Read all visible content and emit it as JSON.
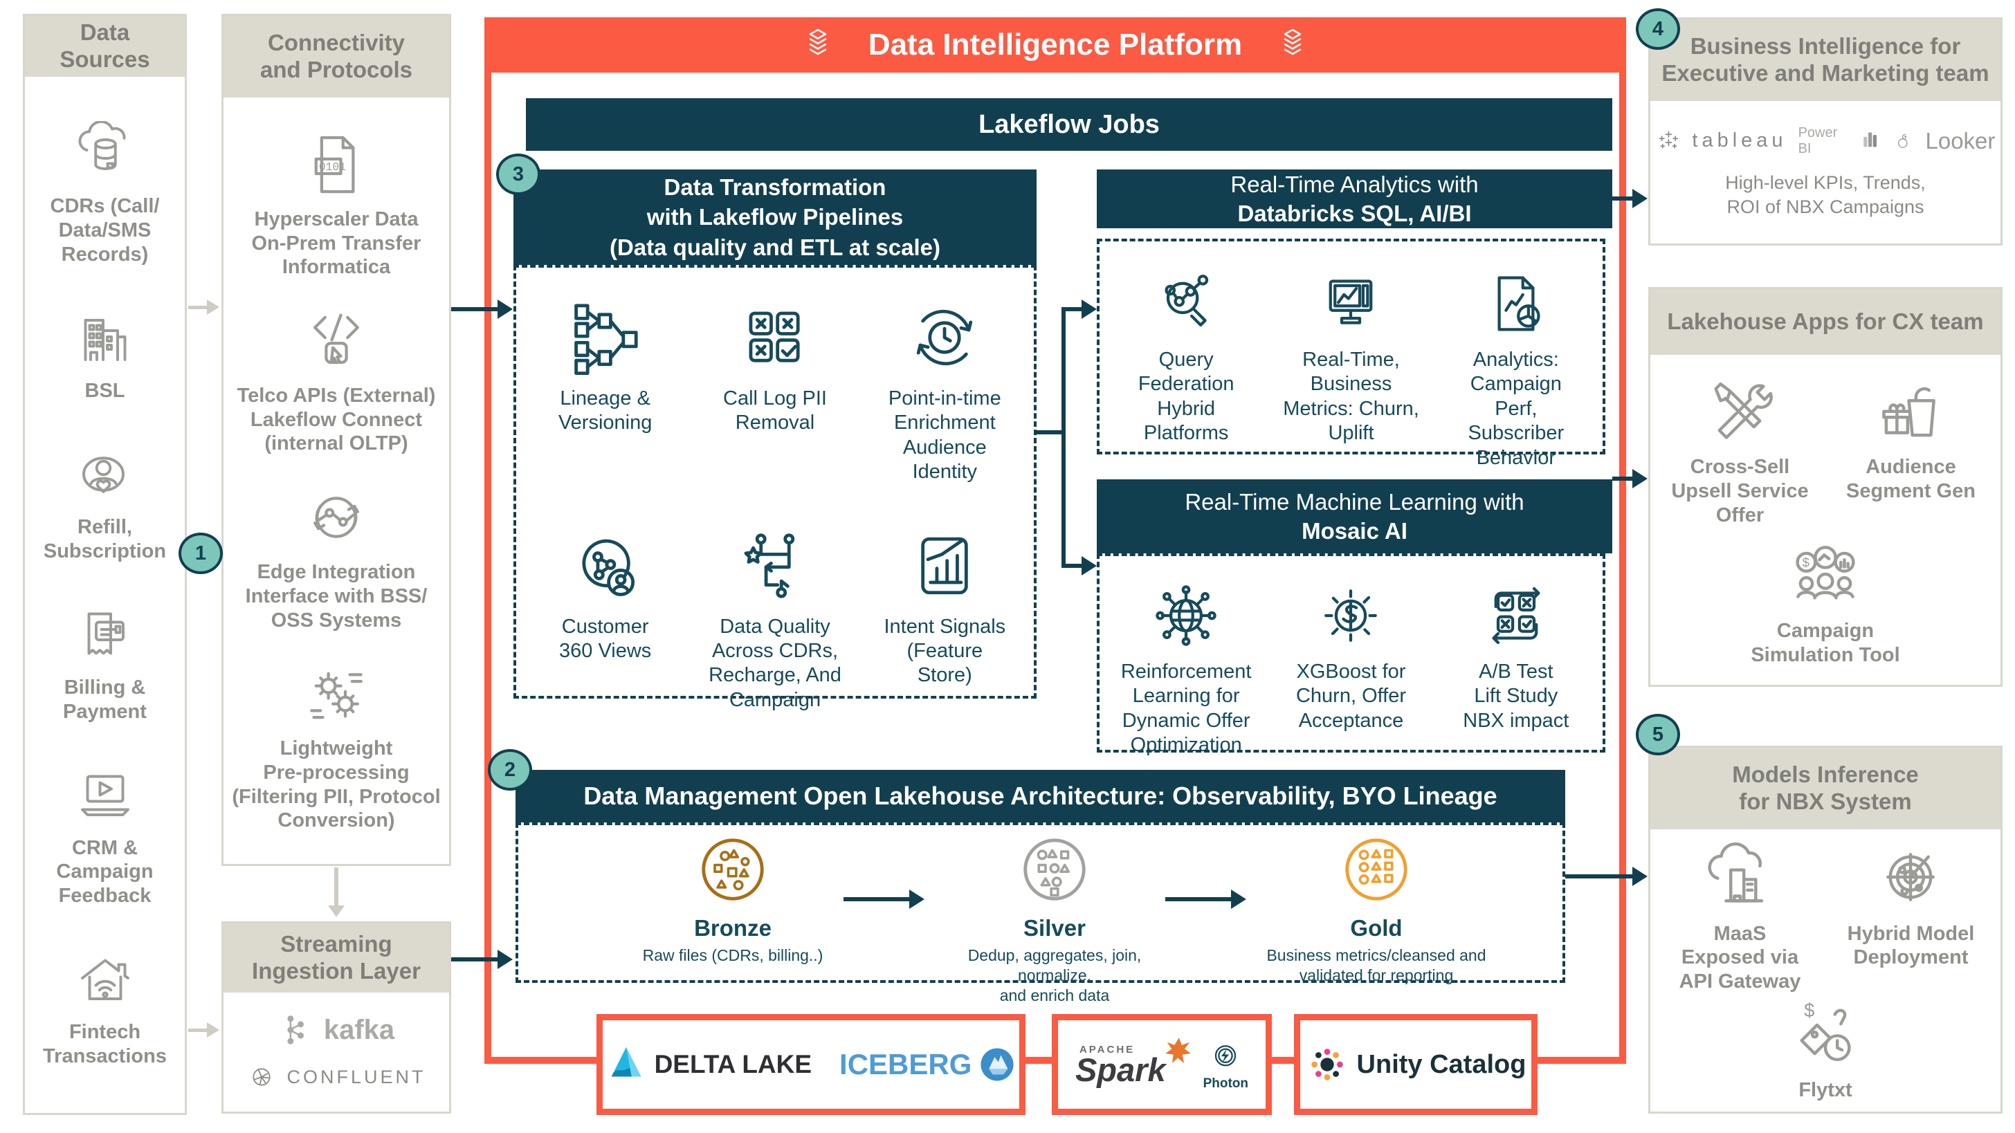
{
  "colors": {
    "accent_orange": "#FB5A43",
    "dark_teal": "#123F4F",
    "badge_teal": "#7CC6BA",
    "bronze": "#A96E15",
    "silver": "#A2A29E",
    "gold": "#F0A02F"
  },
  "badges": {
    "n1": "1",
    "n2": "2",
    "n3": "3",
    "n4": "4",
    "n5": "5"
  },
  "sources": {
    "title": "Data\nSources",
    "items": [
      {
        "icon": "cloud-database",
        "label": "CDRs (Call/\nData/SMS\nRecords)"
      },
      {
        "icon": "buildings",
        "label": "BSL"
      },
      {
        "icon": "person-heart",
        "label": "Refill,\nSubscription"
      },
      {
        "icon": "receipt-card",
        "label": "Billing &\nPayment"
      },
      {
        "icon": "laptop-play",
        "label": "CRM &\nCampaign\nFeedback"
      },
      {
        "icon": "house-wifi",
        "label": "Fintech\nTransactions"
      }
    ]
  },
  "connectivity": {
    "title": "Connectivity\nand Protocols",
    "items": [
      {
        "icon": "binary-file",
        "label": "Hyperscaler Data\nOn-Prem Transfer\nInformatica"
      },
      {
        "icon": "code-cursor",
        "label": "Telco APIs (External)\nLakeflow Connect\n(internal OLTP)"
      },
      {
        "icon": "circuit-loop",
        "label": "Edge Integration\nInterface with BSS/\nOSS Systems"
      },
      {
        "icon": "gears",
        "label": "Lightweight\nPre-processing\n(Filtering PII, Protocol\nConversion)"
      }
    ]
  },
  "streaming": {
    "title": "Streaming\nIngestion Layer",
    "kafka": "kafka",
    "kafka_icon": "kafka-mark",
    "confluent": "CONFLUENT",
    "confluent_icon": "confluent-mark"
  },
  "platform": {
    "title": "Data Intelligence Platform",
    "title_icon": "databricks-stack",
    "lakeflow": "Lakeflow Jobs",
    "transform": {
      "title": "Data Transformation\nwith Lakeflow Pipelines\n(Data quality and ETL at scale)",
      "items": [
        {
          "icon": "lineage-tree",
          "label": "Lineage &\nVersioning"
        },
        {
          "icon": "grid-x-check",
          "label": "Call Log PII\nRemoval"
        },
        {
          "icon": "clock-cycle",
          "label": "Point-in-time\nEnrichment\nAudience\nIdentity"
        },
        {
          "icon": "customer-360",
          "label": "Customer\n360 Views"
        },
        {
          "icon": "flow-arrows",
          "label": "Data Quality\nAcross CDRs,\nRecharge, And\nCampaign"
        },
        {
          "icon": "chart-doc",
          "label": "Intent Signals\n(Feature\nStore)"
        }
      ]
    },
    "analytics": {
      "title_line1": "Real-Time Analytics with",
      "title_line2": "Databricks SQL, AI/BI",
      "items": [
        {
          "icon": "scatter-magnifier",
          "label": "Query\nFederation\nHybrid\nPlatforms"
        },
        {
          "icon": "monitor-chart",
          "label": "Real-Time,\nBusiness\nMetrics: Churn,\nUplift"
        },
        {
          "icon": "doc-pie",
          "label": "Analytics:\nCampaign\nPerf,\nSubscriber\nBehavior"
        }
      ]
    },
    "ml": {
      "title_line1": "Real-Time Machine Learning with",
      "title_line2": "Mosaic AI",
      "items": [
        {
          "icon": "globe-network",
          "label": "Reinforcement\nLearning for\nDynamic Offer\nOptimization"
        },
        {
          "icon": "gear-dollar",
          "label": "XGBoost for\nChurn, Offer\nAcceptance"
        },
        {
          "icon": "ab-test",
          "label": "A/B Test\nLift Study\nNBX impact"
        }
      ]
    },
    "data_mgmt": {
      "title": "Data Management Open Lakehouse Architecture: Observability, BYO Lineage",
      "tiers": [
        {
          "icon": "bronze-medallion",
          "name": "Bronze",
          "desc": "Raw files (CDRs, billing..)"
        },
        {
          "icon": "silver-medallion",
          "name": "Silver",
          "desc": "Dedup, aggregates, join, normalize,\nand enrich data"
        },
        {
          "icon": "gold-medallion",
          "name": "Gold",
          "desc": "Business metrics/cleansed and\nvalidated for reporting"
        }
      ]
    },
    "foundation": {
      "delta": "DELTA LAKE",
      "delta_icon": "delta-lake-mark",
      "iceberg": "ICEBERG",
      "iceberg_icon": "iceberg-mark",
      "apache": "APACHE",
      "spark": "Spark",
      "spark_icon": "spark-star",
      "photon": "Photon",
      "photon_icon": "photon-mark",
      "unity": "Unity Catalog",
      "unity_icon": "unity-catalog-mark"
    }
  },
  "bi": {
    "title": "Business Intelligence for\nExecutive and Marketing team",
    "tableau": "tableau",
    "tableau_icon": "tableau-mark",
    "powerbi": "Power BI",
    "powerbi_icon": "powerbi-mark",
    "looker": "Looker",
    "looker_icon": "looker-mark",
    "caption": "High-level KPIs, Trends,\nROI of NBX Campaigns"
  },
  "cx": {
    "title": "Lakehouse Apps for CX team",
    "items": [
      {
        "icon": "wrench-screwdriver",
        "label": "Cross-Sell\nUpsell Service\nOffer"
      },
      {
        "icon": "gift-bag",
        "label": "Audience\nSegment Gen"
      },
      {
        "icon": "people-bubbles",
        "label": "Campaign\nSimulation Tool"
      }
    ]
  },
  "models": {
    "title": "Models Inference\nfor NBX System",
    "items": [
      {
        "icon": "cloud-buildings",
        "label": "MaaS\nExposed via\nAPI Gateway"
      },
      {
        "icon": "radar",
        "label": "Hybrid Model\nDeployment"
      },
      {
        "icon": "price-tag-clock",
        "label": "Flytxt"
      }
    ]
  }
}
